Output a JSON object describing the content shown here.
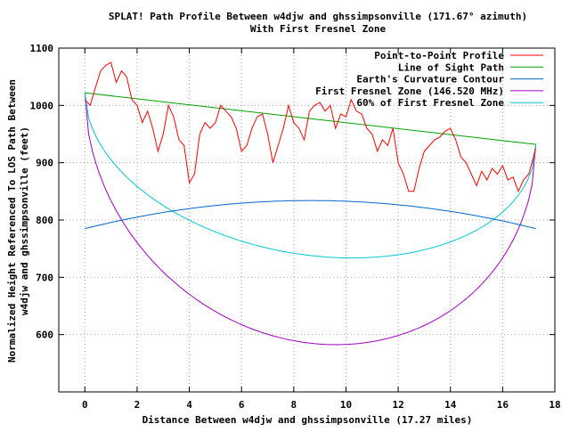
{
  "chart_data": {
    "type": "line",
    "title": "SPLAT! Path Profile Between w4djw and ghssimpsonville (171.67° azimuth)",
    "subtitle": "With First Fresnel Zone",
    "xlabel": "Distance Between w4djw and ghssimpsonville (17.27 miles)",
    "ylabel_line1": "Normalized Height Referenced To LOS Path Between",
    "ylabel_line2": "w4djw and ghssimpsonville (feet)",
    "xlim": [
      -1,
      18
    ],
    "ylim": [
      500,
      1100
    ],
    "x_ticks": [
      0,
      2,
      4,
      6,
      8,
      10,
      12,
      14,
      16,
      18
    ],
    "y_ticks": [
      600,
      700,
      800,
      900,
      1000,
      1100
    ],
    "grid": true,
    "legend_position": "top-right",
    "series": [
      {
        "name": "Point-to-Point Profile",
        "color": "#ff0000",
        "x": [
          0,
          0.2,
          0.4,
          0.6,
          0.8,
          1.0,
          1.2,
          1.4,
          1.6,
          1.8,
          2.0,
          2.2,
          2.4,
          2.6,
          2.8,
          3.0,
          3.2,
          3.4,
          3.6,
          3.8,
          4.0,
          4.2,
          4.4,
          4.6,
          4.8,
          5.0,
          5.2,
          5.4,
          5.6,
          5.8,
          6.0,
          6.2,
          6.4,
          6.6,
          6.8,
          7.0,
          7.2,
          7.4,
          7.6,
          7.8,
          8.0,
          8.2,
          8.4,
          8.6,
          8.8,
          9.0,
          9.2,
          9.4,
          9.6,
          9.8,
          10.0,
          10.2,
          10.4,
          10.6,
          10.8,
          11.0,
          11.2,
          11.4,
          11.6,
          11.8,
          12.0,
          12.2,
          12.4,
          12.6,
          12.8,
          13.0,
          13.2,
          13.4,
          13.6,
          13.8,
          14.0,
          14.2,
          14.4,
          14.6,
          14.8,
          15.0,
          15.2,
          15.4,
          15.6,
          15.8,
          16.0,
          16.2,
          16.4,
          16.6,
          16.8,
          17.0,
          17.27
        ],
        "values": [
          1010,
          1000,
          1030,
          1060,
          1070,
          1075,
          1040,
          1060,
          1050,
          1010,
          1000,
          970,
          990,
          960,
          920,
          950,
          1000,
          980,
          940,
          930,
          865,
          880,
          950,
          970,
          960,
          970,
          1000,
          990,
          980,
          960,
          920,
          930,
          960,
          980,
          985,
          950,
          900,
          930,
          960,
          1000,
          970,
          960,
          940,
          990,
          1000,
          1005,
          990,
          1000,
          960,
          985,
          980,
          1010,
          990,
          985,
          960,
          950,
          920,
          940,
          930,
          960,
          900,
          880,
          850,
          850,
          890,
          920,
          930,
          940,
          945,
          955,
          960,
          940,
          910,
          900,
          880,
          860,
          885,
          870,
          890,
          880,
          895,
          870,
          875,
          850,
          870,
          880,
          925
        ]
      },
      {
        "name": "Line of Sight Path",
        "color": "#00a000",
        "x": [
          0,
          17.27
        ],
        "values": [
          1022,
          932
        ]
      },
      {
        "name": "Earth's Curvature Contour",
        "color": "#0066cc",
        "curve": "parabola",
        "x_range": [
          0,
          17.27
        ],
        "endpoint_value": 785,
        "peak_value": 834
      },
      {
        "name": "First Fresnel Zone (146.520 MHz)",
        "color": "#a000c0",
        "curve": "ellipse-lower",
        "x_range": [
          0,
          17.27
        ],
        "endpoint_values": [
          1022,
          932
        ],
        "min_value": 585
      },
      {
        "name": "60% of First Fresnel Zone",
        "color": "#00c8d0",
        "curve": "ellipse-lower",
        "x_range": [
          0,
          17.27
        ],
        "endpoint_values": [
          1022,
          932
        ],
        "min_value": 738
      }
    ]
  }
}
